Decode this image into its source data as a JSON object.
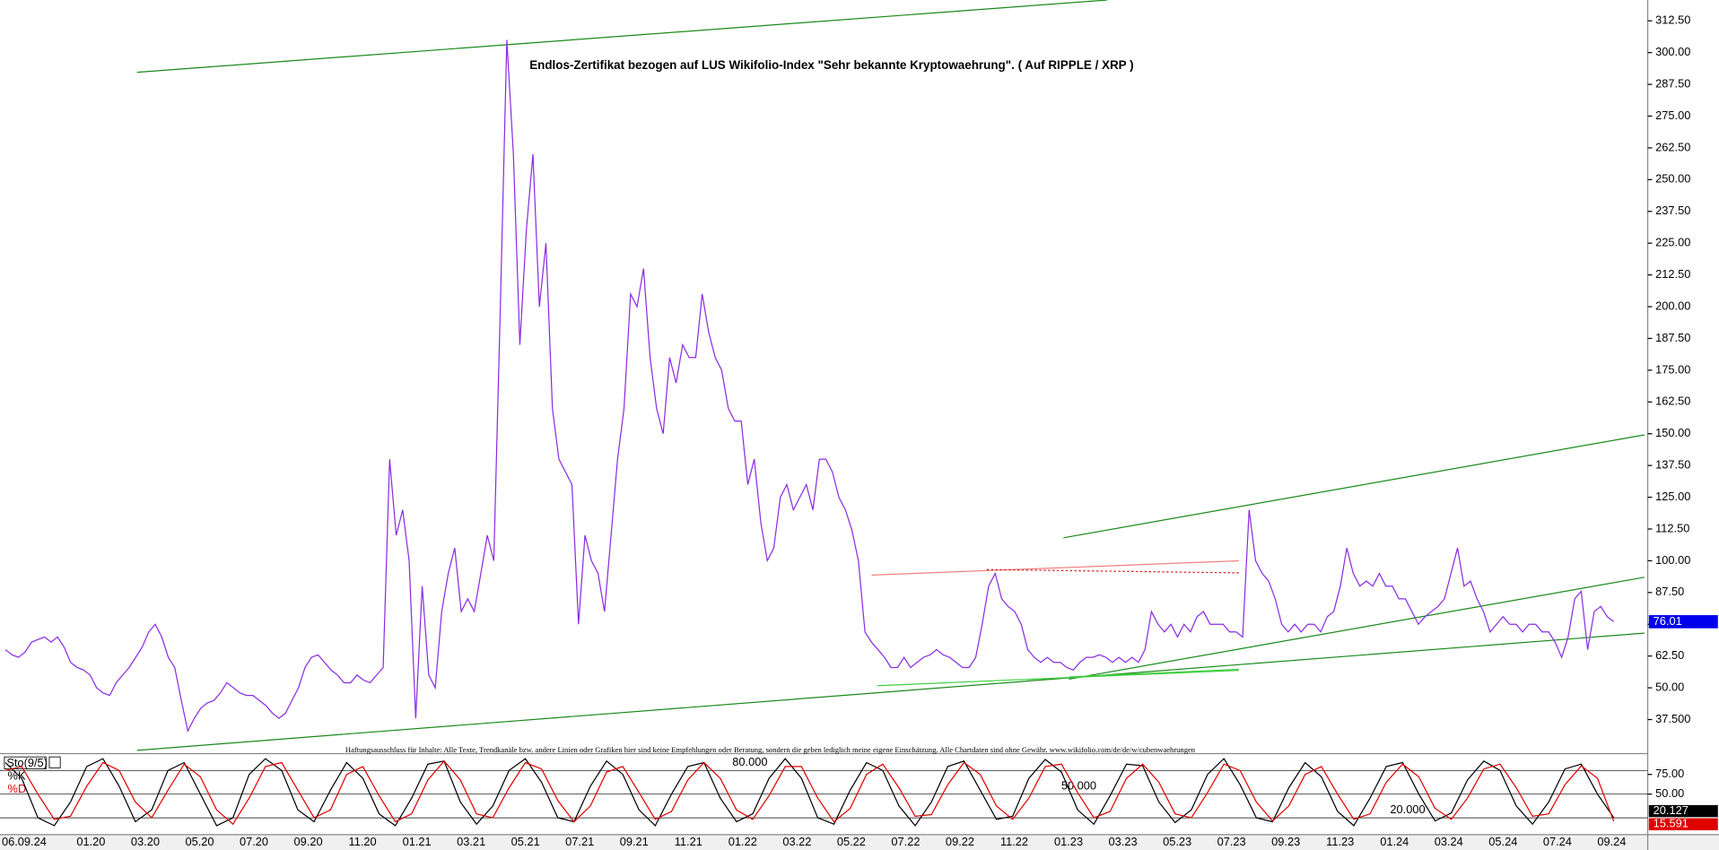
{
  "chart_data": [
    {
      "type": "line",
      "title": "Endlos-Zertifikat bezogen auf LUS Wikifolio-Index \"Sehr bekannte Kryptowaehrung\". ( Auf RIPPLE / XRP )",
      "annotation": "Haftungsausschluss für Inhalte: Alle Texte, Trendkanäle bzw. andere Linien oder Grafiken hier sind keine Empfehlungen oder Beratung, sondern die geben lediglich meine eigene Einschätzung. Alle Chartdaten sind ohne Gewähr. www.wikifolio.com/de/de/w/cubenwaehrungen",
      "color": "#8a2be2",
      "x_labels": [
        "06.09.24",
        "01.20",
        "03.20",
        "05.20",
        "07.20",
        "09.20",
        "11.20",
        "01.21",
        "03.21",
        "05.21",
        "07.21",
        "09.21",
        "11.21",
        "01.22",
        "03.22",
        "05.22",
        "07.22",
        "09.22",
        "11.22",
        "01.23",
        "03.23",
        "05.23",
        "07.23",
        "09.23",
        "11.23",
        "01.24",
        "03.24",
        "05.24",
        "07.24",
        "09.24"
      ],
      "values": [
        65,
        63,
        62,
        64,
        68,
        69,
        70,
        68,
        70,
        66,
        60,
        58,
        57,
        55,
        50,
        48,
        47,
        52,
        55,
        58,
        62,
        66,
        72,
        75,
        70,
        62,
        58,
        45,
        33,
        38,
        42,
        44,
        45,
        48,
        52,
        50,
        48,
        47,
        47,
        45,
        43,
        40,
        38,
        40,
        45,
        50,
        58,
        62,
        63,
        60,
        57,
        55,
        52,
        52,
        55,
        53,
        52,
        55,
        58,
        140,
        110,
        120,
        100,
        38,
        90,
        55,
        50,
        80,
        95,
        105,
        80,
        85,
        80,
        95,
        110,
        100,
        200,
        305,
        260,
        185,
        230,
        260,
        200,
        225,
        160,
        140,
        135,
        130,
        75,
        110,
        100,
        95,
        80,
        110,
        140,
        160,
        205,
        200,
        215,
        180,
        160,
        150,
        180,
        170,
        185,
        180,
        180,
        205,
        190,
        180,
        175,
        160,
        155,
        155,
        130,
        140,
        115,
        100,
        105,
        125,
        130,
        120,
        125,
        130,
        120,
        140,
        140,
        135,
        125,
        120,
        112,
        100,
        72,
        68,
        65,
        62,
        58,
        58,
        62,
        58,
        60,
        62,
        63,
        65,
        63,
        62,
        60,
        58,
        58,
        62,
        75,
        90,
        95,
        85,
        82,
        80,
        75,
        65,
        62,
        60,
        62,
        60,
        60,
        58,
        57,
        60,
        62,
        62,
        63,
        62,
        60,
        62,
        60,
        62,
        60,
        65,
        80,
        75,
        72,
        75,
        70,
        75,
        72,
        78,
        80,
        75,
        75,
        75,
        72,
        72,
        70,
        120,
        100,
        95,
        92,
        85,
        75,
        72,
        75,
        72,
        75,
        75,
        72,
        78,
        80,
        90,
        105,
        95,
        90,
        92,
        90,
        95,
        90,
        90,
        85,
        85,
        80,
        75,
        78,
        80,
        82,
        85,
        95,
        105,
        90,
        92,
        85,
        80,
        72,
        75,
        78,
        75,
        75,
        72,
        75,
        75,
        72,
        72,
        68,
        62,
        70,
        85,
        88,
        65,
        80,
        82,
        78,
        76.01
      ],
      "ylim": [
        24.1,
        320.7
      ],
      "yticks": [
        {
          "value": 37.5,
          "label": "37.500"
        },
        {
          "value": 50,
          "label": "50.00"
        },
        {
          "value": 62.5,
          "label": "62.50"
        },
        {
          "value": 75,
          "label": "75.00"
        },
        {
          "value": 87.5,
          "label": "87.50"
        },
        {
          "value": 100,
          "label": "100.00"
        },
        {
          "value": 112.5,
          "label": "112.50"
        },
        {
          "value": 125,
          "label": "125.00"
        },
        {
          "value": 137.5,
          "label": "137.50"
        },
        {
          "value": 150,
          "label": "150.00"
        },
        {
          "value": 162.5,
          "label": "162.50"
        },
        {
          "value": 175,
          "label": "175.00"
        },
        {
          "value": 187.5,
          "label": "187.50"
        },
        {
          "value": 200,
          "label": "200.00"
        },
        {
          "value": 212.5,
          "label": "212.50"
        },
        {
          "value": 225,
          "label": "225.00"
        },
        {
          "value": 237.5,
          "label": "237.50"
        },
        {
          "value": 250,
          "label": "250.00"
        },
        {
          "value": 262.5,
          "label": "262.50"
        },
        {
          "value": 275,
          "label": "275.00"
        },
        {
          "value": 287.5,
          "label": "287.50"
        },
        {
          "value": 300,
          "label": "300.00"
        },
        {
          "value": 312.5,
          "label": "312.50"
        }
      ]
    },
    {
      "type": "line",
      "title": "Sto(9/5)",
      "series": [
        {
          "name": "%K",
          "color": "#000000",
          "values": [
            90,
            70,
            20,
            10,
            40,
            85,
            95,
            60,
            15,
            30,
            80,
            90,
            50,
            10,
            20,
            75,
            95,
            80,
            30,
            15,
            55,
            90,
            70,
            25,
            10,
            45,
            88,
            92,
            40,
            12,
            35,
            80,
            95,
            65,
            20,
            15,
            60,
            92,
            75,
            30,
            10,
            50,
            85,
            90,
            45,
            15,
            25,
            70,
            95,
            70,
            20,
            12,
            55,
            90,
            80,
            35,
            10,
            40,
            85,
            92,
            55,
            18,
            22,
            70,
            94,
            78,
            30,
            12,
            48,
            88,
            86,
            40,
            14,
            30,
            75,
            95,
            62,
            20,
            15,
            58,
            90,
            72,
            28,
            10,
            45,
            85,
            90,
            50,
            16,
            26,
            68,
            92,
            80,
            35,
            12,
            40,
            82,
            88,
            50,
            20.127
          ]
        },
        {
          "name": "%D",
          "color": "#e00000",
          "values": [
            80,
            85,
            50,
            18,
            22,
            60,
            90,
            80,
            40,
            20,
            55,
            88,
            72,
            30,
            12,
            45,
            85,
            90,
            55,
            20,
            30,
            75,
            85,
            48,
            15,
            25,
            68,
            92,
            68,
            25,
            20,
            58,
            90,
            82,
            42,
            15,
            35,
            78,
            85,
            52,
            18,
            28,
            68,
            90,
            70,
            30,
            18,
            48,
            85,
            85,
            45,
            15,
            32,
            75,
            88,
            58,
            22,
            24,
            62,
            90,
            75,
            35,
            18,
            45,
            85,
            88,
            52,
            20,
            28,
            70,
            88,
            65,
            25,
            20,
            52,
            88,
            80,
            40,
            16,
            35,
            75,
            85,
            50,
            18,
            25,
            65,
            88,
            72,
            32,
            18,
            45,
            82,
            88,
            58,
            22,
            25,
            62,
            86,
            70,
            15.591
          ]
        }
      ],
      "ylim": [
        0,
        100
      ],
      "yticks": [
        {
          "value": 75,
          "label": "75.00"
        },
        {
          "value": 50,
          "label": "50.00"
        }
      ],
      "levels": [
        {
          "value": 80,
          "label": "80.000"
        },
        {
          "value": 50,
          "label": "50.000"
        },
        {
          "value": 20,
          "label": "20.000"
        }
      ]
    }
  ]
}
